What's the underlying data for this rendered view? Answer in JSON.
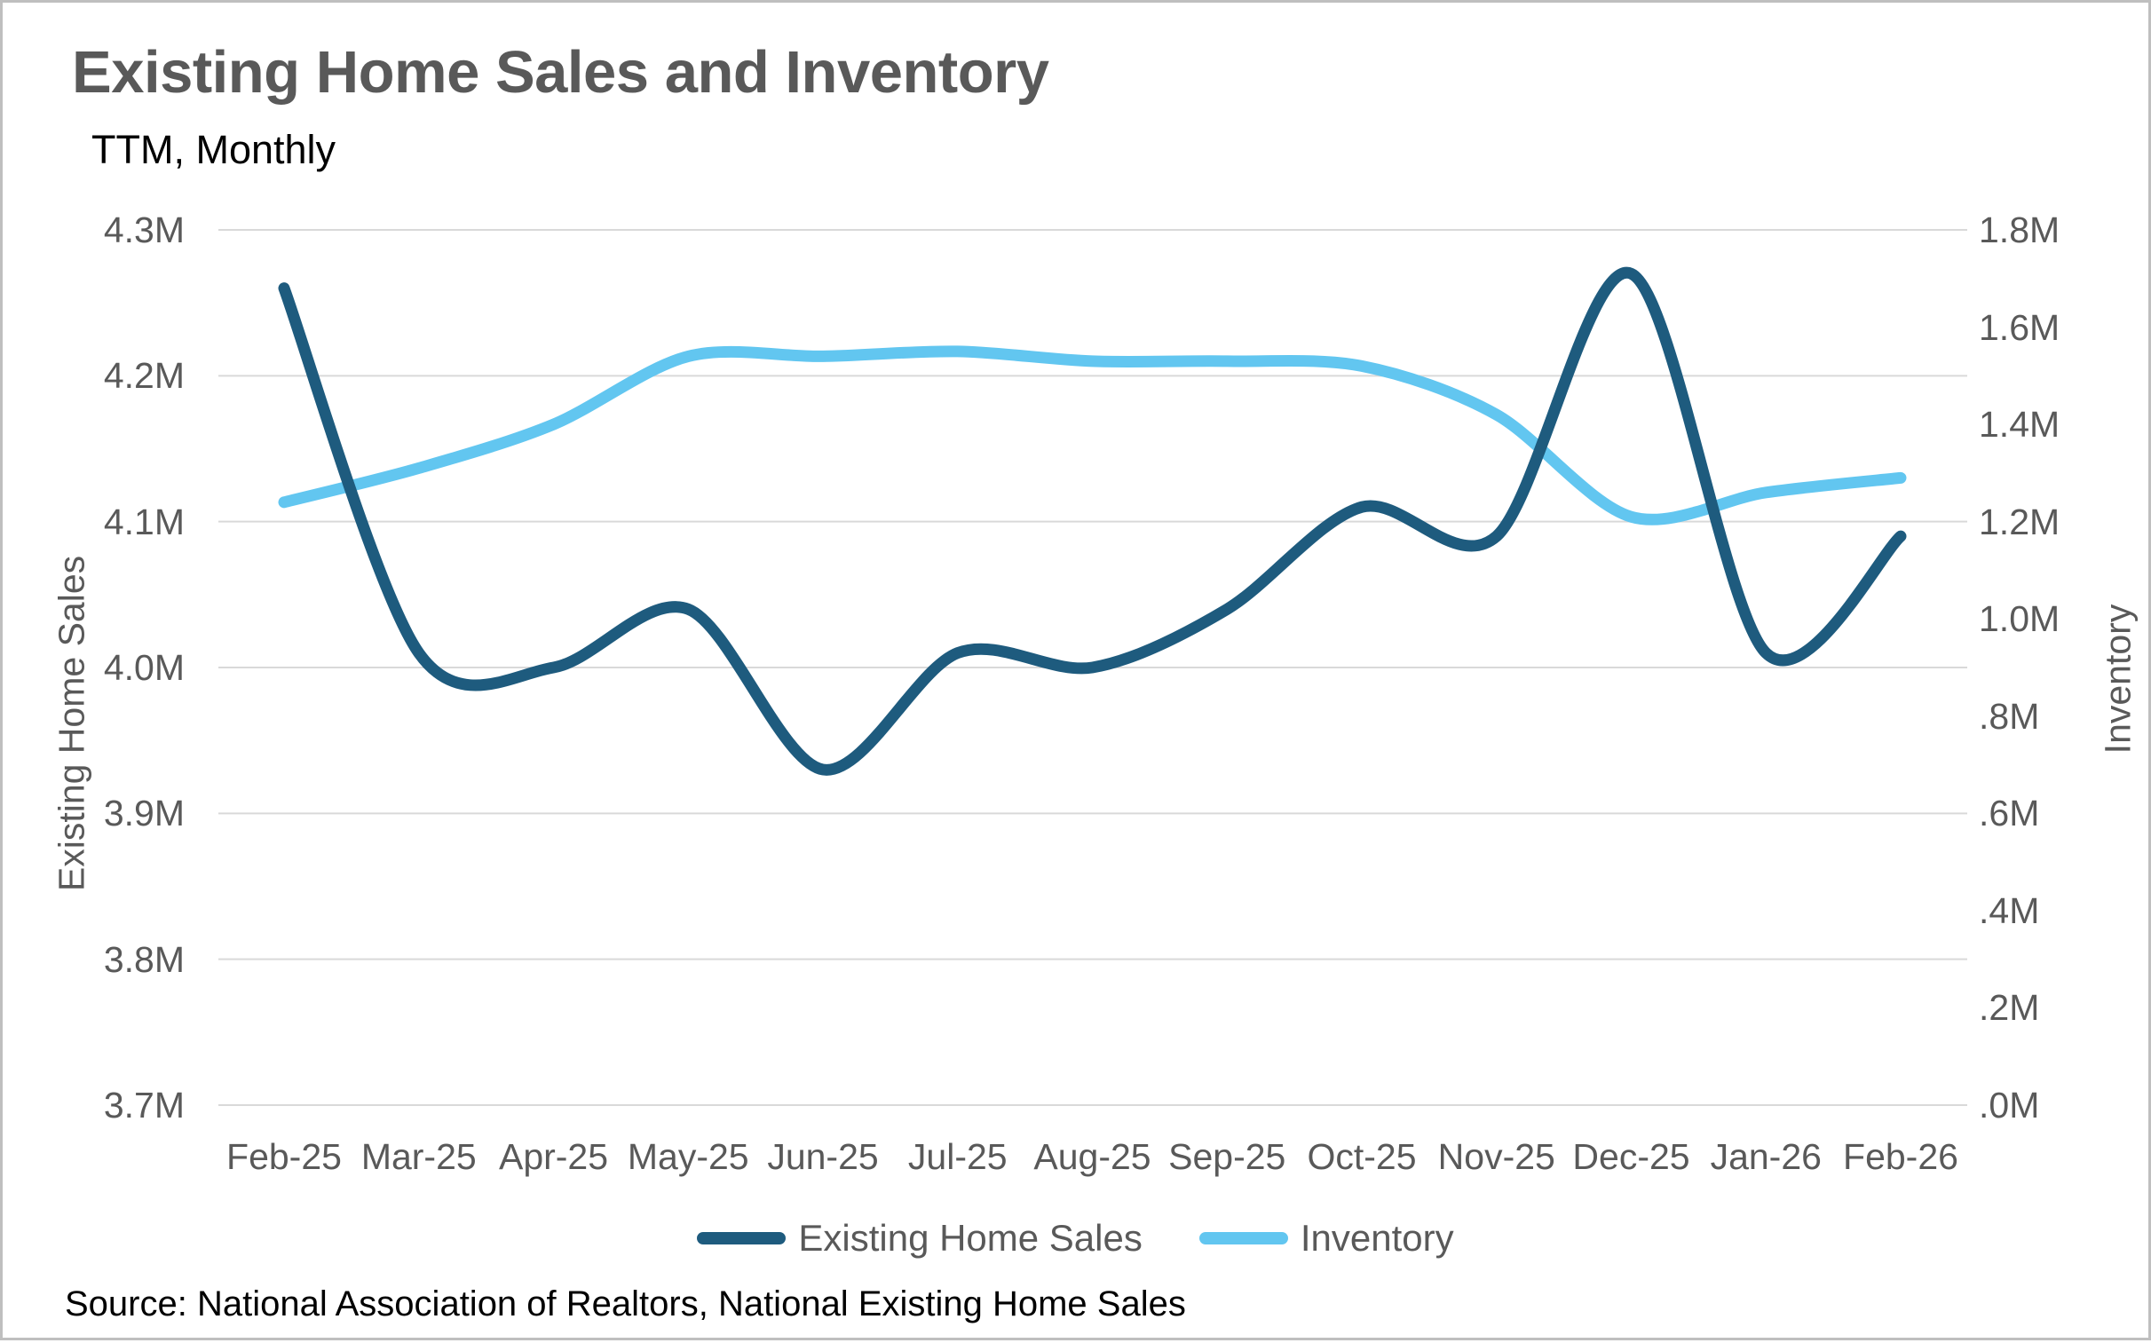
{
  "header": {
    "title": "Existing Home Sales and Inventory",
    "subtitle": "TTM, Monthly"
  },
  "source": "Source: National Association of Realtors, National Existing Home Sales",
  "legend": {
    "items": [
      {
        "label": "Existing Home Sales",
        "color": "#1E5B7E"
      },
      {
        "label": "Inventory",
        "color": "#62C6F0"
      }
    ]
  },
  "colors": {
    "grid": "#D9D9D9",
    "axis_text": "#595959",
    "title_text": "#595959",
    "body_text": "#000000",
    "sales_line": "#1E5B7E",
    "inventory_line": "#62C6F0"
  },
  "chart_data": {
    "type": "line",
    "title": "Existing Home Sales and Inventory",
    "subtitle": "TTM, Monthly",
    "categories": [
      "Feb-25",
      "Mar-25",
      "Apr-25",
      "May-25",
      "Jun-25",
      "Jul-25",
      "Aug-25",
      "Sep-25",
      "Oct-25",
      "Nov-25",
      "Dec-25",
      "Jan-26",
      "Feb-26"
    ],
    "series": [
      {
        "name": "Existing Home Sales",
        "axis": "left",
        "color": "#1E5B7E",
        "values": [
          4.26,
          4.01,
          4.0,
          4.04,
          3.93,
          4.01,
          4.0,
          4.04,
          4.11,
          4.09,
          4.27,
          4.01,
          4.09
        ]
      },
      {
        "name": "Inventory",
        "axis": "right",
        "color": "#62C6F0",
        "values": [
          1.24,
          1.31,
          1.4,
          1.54,
          1.54,
          1.55,
          1.53,
          1.53,
          1.52,
          1.42,
          1.21,
          1.26,
          1.29
        ]
      }
    ],
    "left_axis": {
      "title": "Existing Home Sales",
      "min": 3.7,
      "max": 4.3,
      "ticks": [
        {
          "label": "4.3M",
          "value": 4.3
        },
        {
          "label": "4.2M",
          "value": 4.2
        },
        {
          "label": "4.1M",
          "value": 4.1
        },
        {
          "label": "4.0M",
          "value": 4.0
        },
        {
          "label": "3.9M",
          "value": 3.9
        },
        {
          "label": "3.8M",
          "value": 3.8
        },
        {
          "label": "3.7M",
          "value": 3.7
        }
      ]
    },
    "right_axis": {
      "title": "Inventory",
      "min": 0.0,
      "max": 1.8,
      "ticks": [
        {
          "label": "1.8M",
          "value": 1.8
        },
        {
          "label": "1.6M",
          "value": 1.6
        },
        {
          "label": "1.4M",
          "value": 1.4
        },
        {
          "label": "1.2M",
          "value": 1.2
        },
        {
          "label": "1.0M",
          "value": 1.0
        },
        {
          "label": ".8M",
          "value": 0.8
        },
        {
          "label": ".6M",
          "value": 0.6
        },
        {
          "label": ".4M",
          "value": 0.4
        },
        {
          "label": ".2M",
          "value": 0.2
        },
        {
          "label": ".0M",
          "value": 0.0
        }
      ]
    },
    "grid": "horizontal",
    "legend_position": "bottom"
  }
}
